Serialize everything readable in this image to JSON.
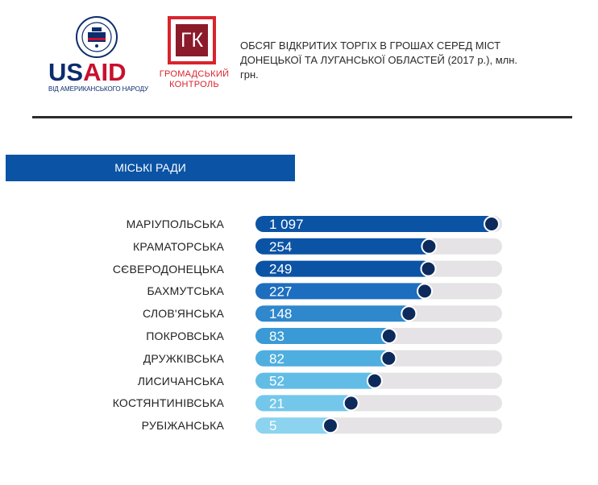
{
  "logos": {
    "usaid": {
      "us": "US",
      "aid": "AID",
      "subtitle": "ВІД АМЕРИКАНСЬКОГО НАРОДУ"
    },
    "gk": {
      "mark": "ГК",
      "line1": "ГРОМАДСЬКИЙ",
      "line2": "КОНТРОЛЬ"
    }
  },
  "colors": {
    "rule": "#2b2b2b",
    "section_bg": "#0b53a5",
    "track": "#e5e3e5",
    "dot": "#0d2a5c",
    "bars": [
      "#0b53a5",
      "#0b53a5",
      "#0b53a5",
      "#1d6ebf",
      "#2f87cc",
      "#3a9ad6",
      "#4faee0",
      "#62bde6",
      "#73c7ea",
      "#8bd3ef"
    ]
  },
  "chart_data": {
    "type": "bar",
    "orientation": "horizontal",
    "title": "ОБСЯГ  ВІДКРИТИХ ТОРГІХ В ГРОШАХ СЕРЕД МІСТ ДОНЕЦЬКОЇ ТА ЛУГАНСЬКОЇ ОБЛАСТЕЙ (2017 р.), млн. грн.",
    "section": "МІСЬКІ РАДИ",
    "categories": [
      "МАРІУПОЛЬСЬКА",
      "КРАМАТОРСЬКА",
      "СЄВЕРОДОНЕЦЬКА",
      "БАХМУТСЬКА",
      "СЛОВ'ЯНСЬКА",
      "ПОКРОВСЬКА",
      "ДРУЖКІВСЬКА",
      "ЛИСИЧАНСЬКА",
      "КОСТЯНТИНІВСЬКА",
      "РУБІЖАНСЬКА"
    ],
    "values": [
      1097,
      254,
      249,
      227,
      148,
      83,
      82,
      52,
      21,
      5
    ],
    "value_labels": [
      "1 097",
      "254",
      "249",
      "227",
      "148",
      "83",
      "82",
      "52",
      "21",
      "5"
    ],
    "scale": "non-linear (value bubbles only)"
  }
}
